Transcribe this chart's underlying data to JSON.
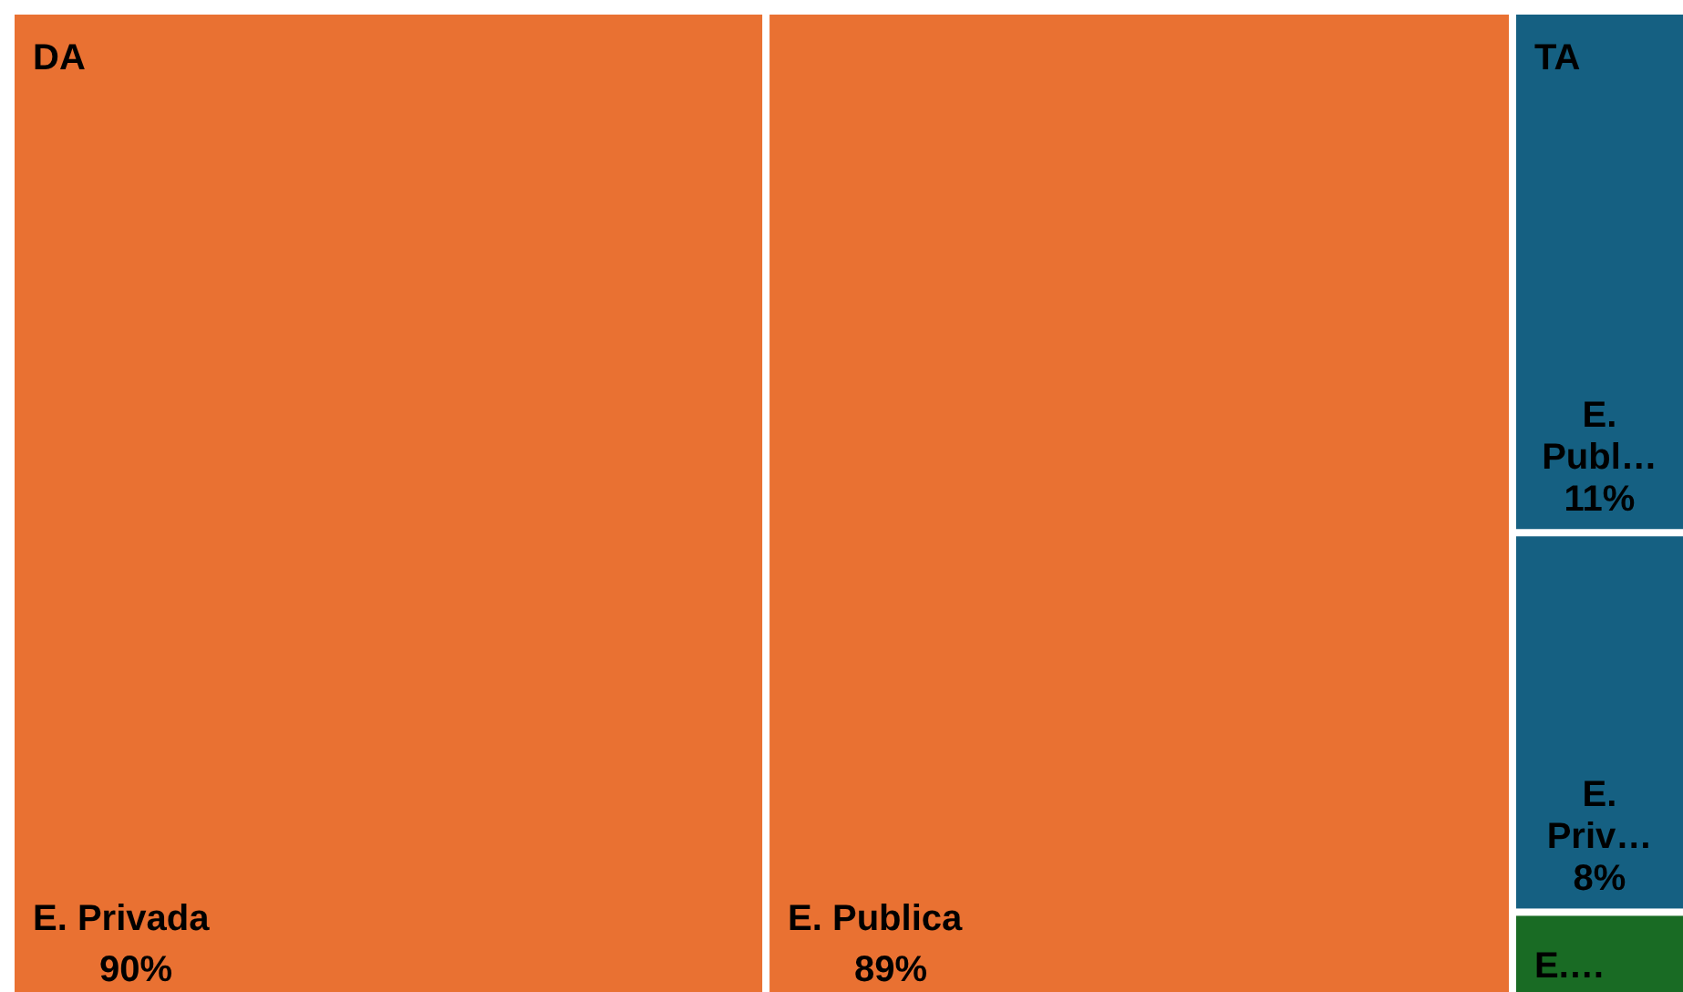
{
  "chart_data": {
    "type": "other",
    "categories": [
      "E. Privada",
      "E. Publica",
      "E. Publ…",
      "E. Priv…",
      "E.…"
    ],
    "series": [
      {
        "name": "DA",
        "color": "#e97132",
        "values": [
          90,
          89,
          null,
          null,
          null
        ],
        "value_labels": [
          "90%",
          "89%",
          null,
          null,
          null
        ]
      },
      {
        "name": "TA",
        "color": "#156082",
        "values": [
          null,
          null,
          11,
          8,
          null
        ],
        "value_labels": [
          null,
          null,
          "11%",
          "8%",
          null
        ]
      },
      {
        "color": "#196b24",
        "values": [
          null,
          null,
          null,
          null,
          null
        ],
        "value_labels": [
          null,
          null,
          null,
          null,
          null
        ]
      }
    ]
  }
}
